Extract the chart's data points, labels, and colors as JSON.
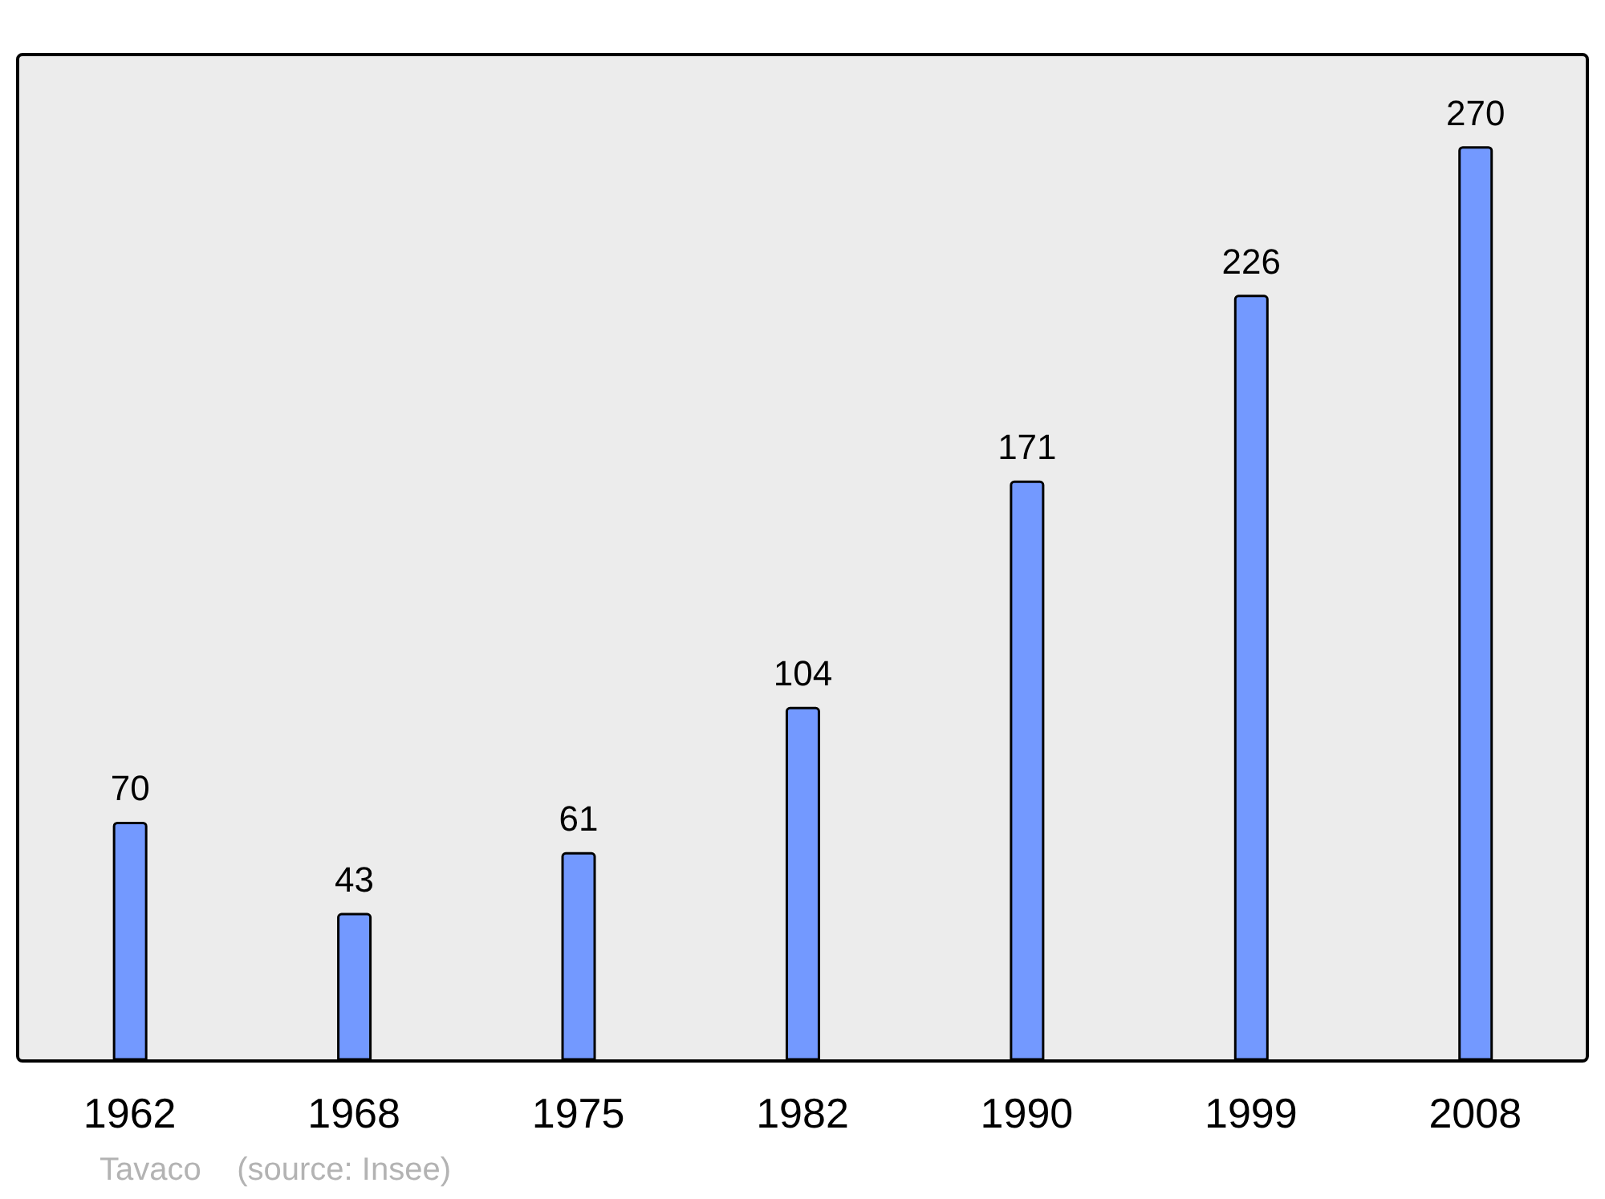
{
  "chart_data": {
    "type": "bar",
    "categories": [
      "1962",
      "1968",
      "1975",
      "1982",
      "1990",
      "1999",
      "2008"
    ],
    "values": [
      70,
      43,
      61,
      104,
      171,
      226,
      270
    ],
    "color": "#7399ff",
    "data_labels": true,
    "annotations": [
      "Tavaco    (source: Insee)"
    ]
  }
}
